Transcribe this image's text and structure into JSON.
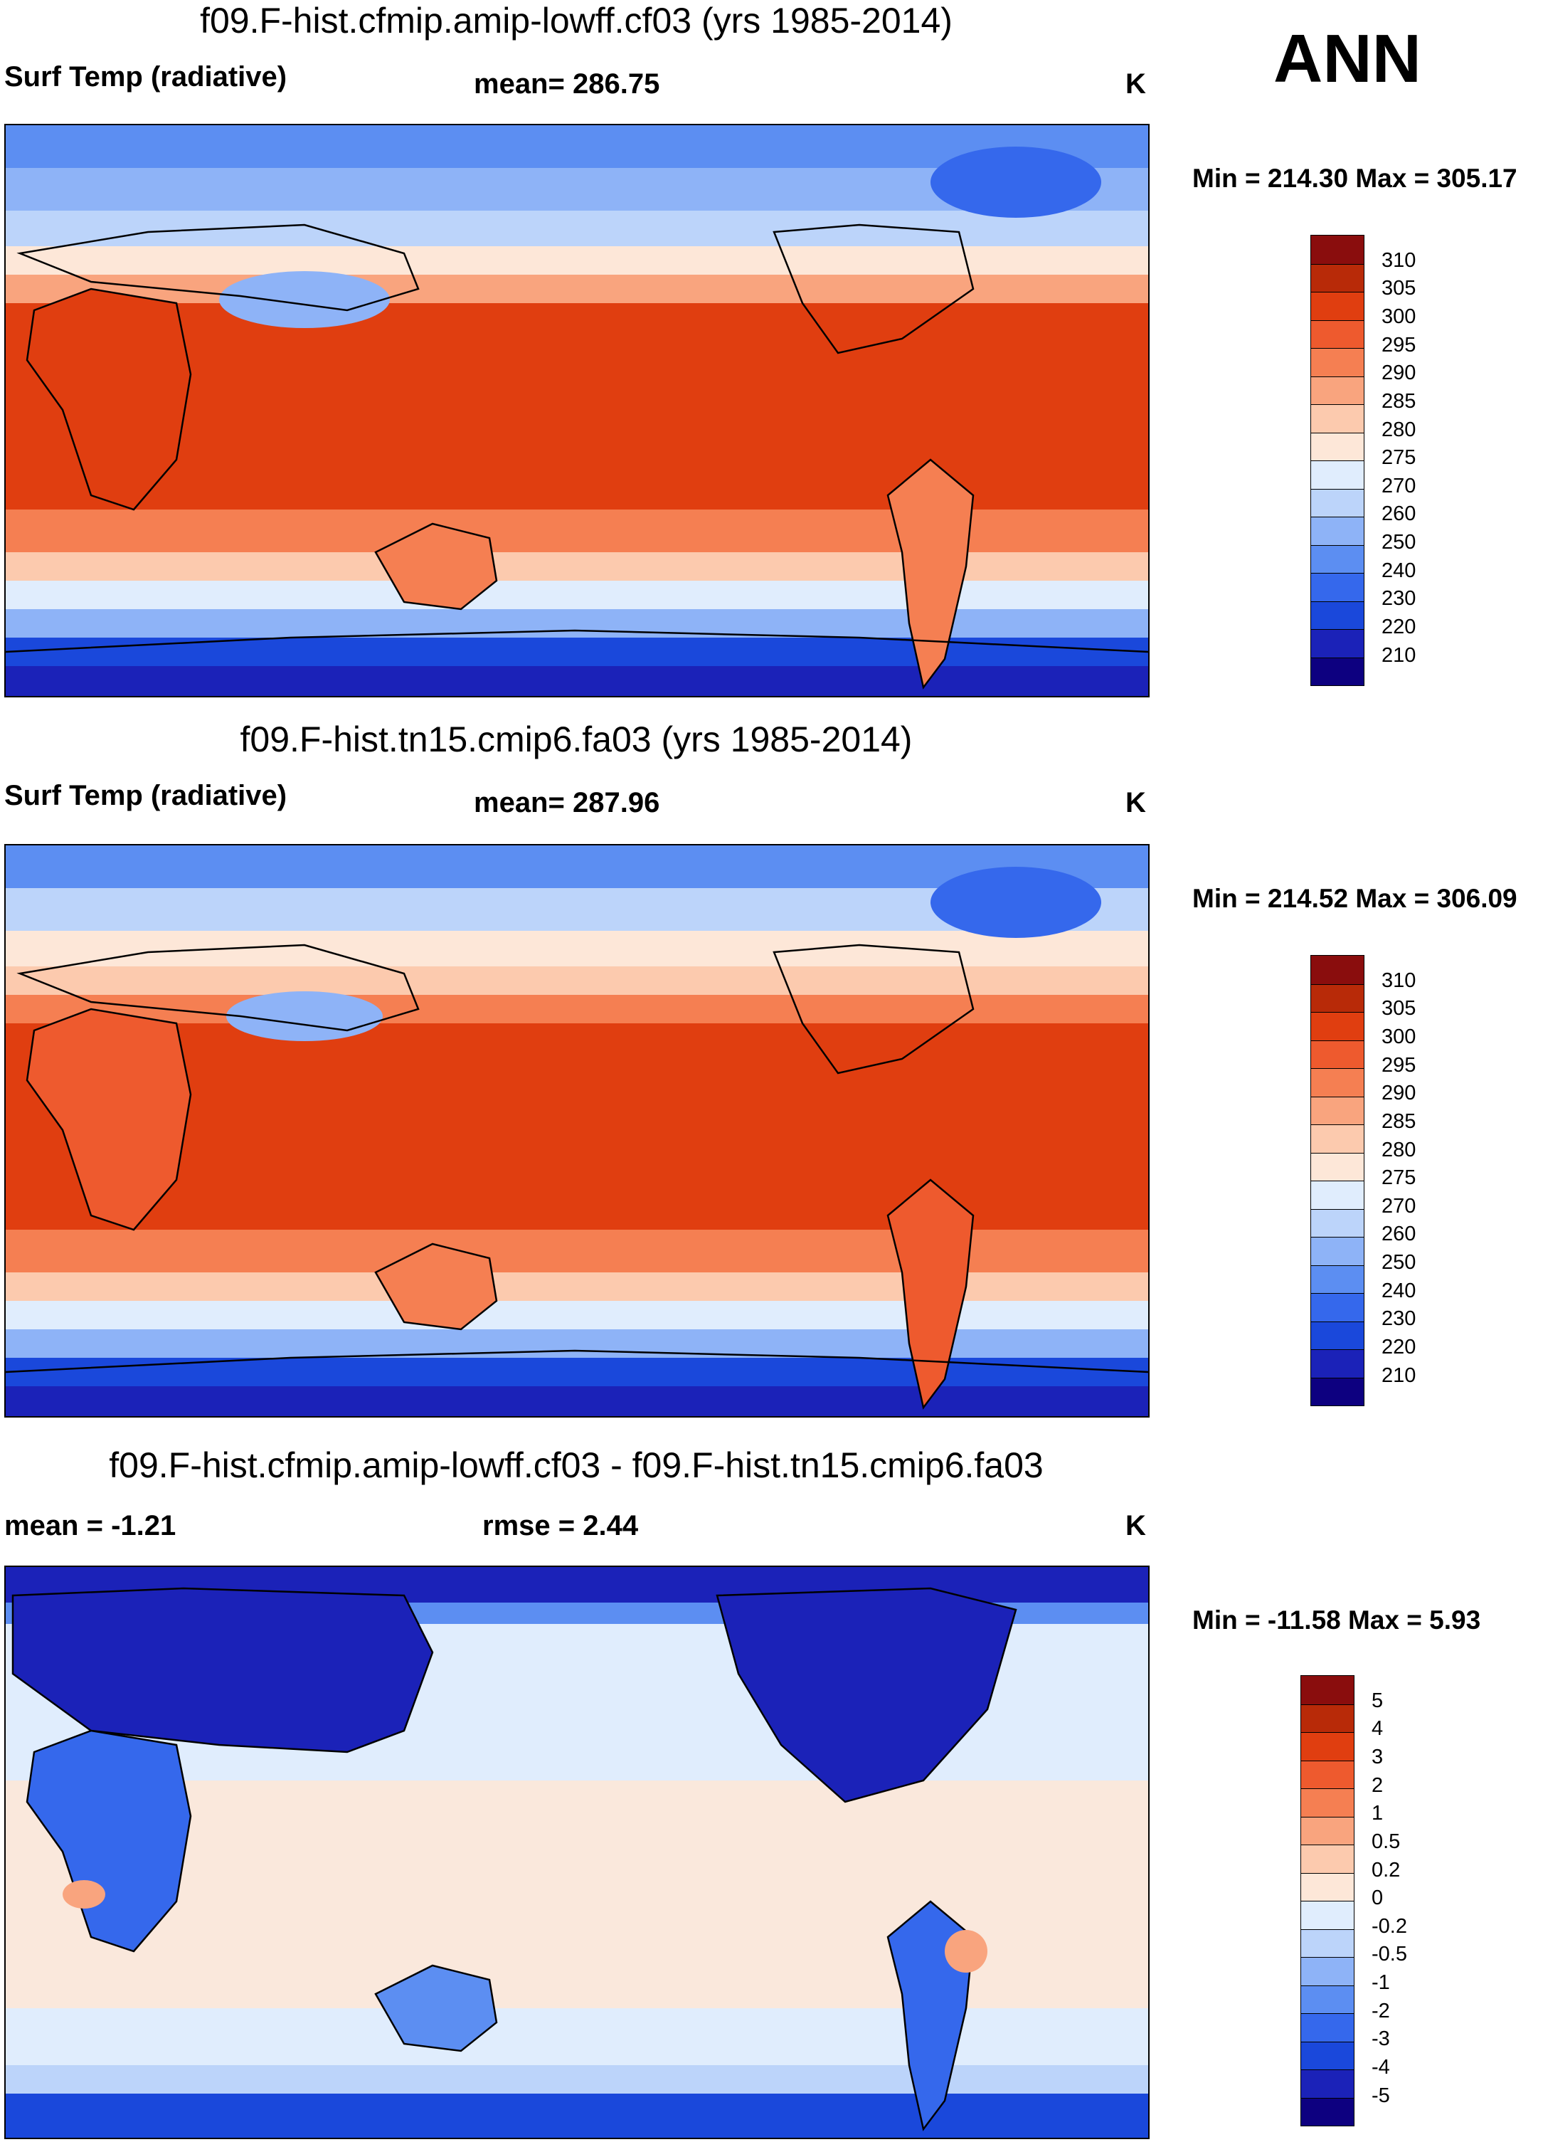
{
  "header": {
    "season": "ANN"
  },
  "palettes": {
    "temp": [
      "#0d0080",
      "#1b22b8",
      "#1a48db",
      "#3568ec",
      "#5c8ef2",
      "#8eb3f7",
      "#bcd4fa",
      "#e0edfd",
      "#fde7d8",
      "#fccaae",
      "#f9a47e",
      "#f57f52",
      "#ee5a2e",
      "#e03e10",
      "#b82a08",
      "#8a0d0d"
    ],
    "diff": [
      "#0d0080",
      "#1b22b8",
      "#1a48db",
      "#3568ec",
      "#5c8ef2",
      "#8eb3f7",
      "#bcd4fa",
      "#e0edfd",
      "#fde7d8",
      "#fccaae",
      "#f9a47e",
      "#f57f52",
      "#ee5a2e",
      "#e03e10",
      "#b82a08",
      "#8a0d0d"
    ]
  },
  "panels": [
    {
      "title": "f09.F-hist.cfmip.amip-lowff.cf03 (yrs 1985-2014)",
      "left_label": "Surf Temp (radiative)",
      "center_label": "mean= 286.75",
      "units": "K",
      "minmax": "Min = 214.30 Max = 305.17",
      "colorbar": [
        "310",
        "305",
        "300",
        "295",
        "290",
        "285",
        "280",
        "275",
        "270",
        "260",
        "250",
        "240",
        "230",
        "220",
        "210"
      ]
    },
    {
      "title": "f09.F-hist.tn15.cmip6.fa03 (yrs 1985-2014)",
      "left_label": "Surf Temp (radiative)",
      "center_label": "mean= 287.96",
      "units": "K",
      "minmax": "Min = 214.52 Max = 306.09",
      "colorbar": [
        "310",
        "305",
        "300",
        "295",
        "290",
        "285",
        "280",
        "275",
        "270",
        "260",
        "250",
        "240",
        "230",
        "220",
        "210"
      ]
    },
    {
      "title": "f09.F-hist.cfmip.amip-lowff.cf03 - f09.F-hist.tn15.cmip6.fa03",
      "left_label": "mean =  -1.21",
      "center_label": "rmse =   2.44",
      "units": "K",
      "minmax": "Min = -11.58 Max =   5.93",
      "colorbar": [
        "5",
        "4",
        "3",
        "2",
        "1",
        "0.5",
        "0.2",
        "0",
        "-0.2",
        "-0.5",
        "-1",
        "-2",
        "-3",
        "-4",
        "-5"
      ]
    }
  ]
}
